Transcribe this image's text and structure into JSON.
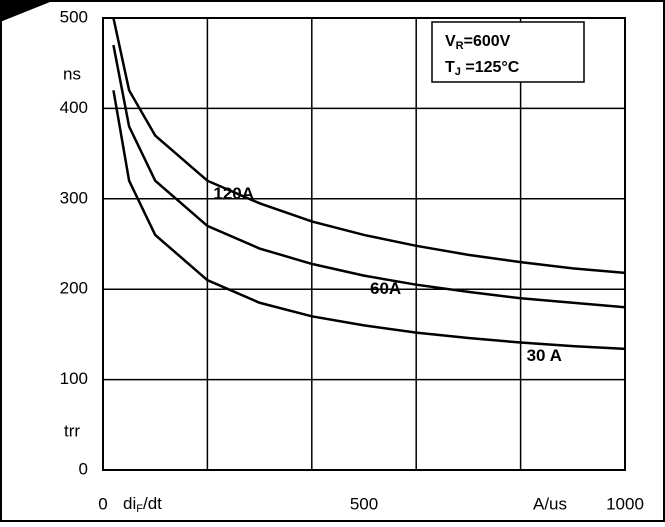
{
  "chart_data": {
    "type": "line",
    "y_label_top": "ns",
    "y_label_bottom": "trr",
    "x_label": [
      "di",
      "F",
      "/dt"
    ],
    "x_unit": "A/us",
    "annotations": [
      [
        "V",
        "R",
        "=600V"
      ],
      [
        "T",
        "J",
        " =125°C"
      ]
    ],
    "x": [
      20,
      50,
      100,
      200,
      300,
      400,
      500,
      600,
      700,
      800,
      900,
      1000
    ],
    "series": [
      {
        "name": "120A",
        "color": "#000000",
        "values": [
          500,
          420,
          370,
          320,
          295,
          275,
          260,
          248,
          238,
          230,
          223,
          218
        ]
      },
      {
        "name": "60A",
        "color": "#000000",
        "values": [
          470,
          380,
          320,
          270,
          245,
          228,
          215,
          205,
          197,
          190,
          185,
          180
        ]
      },
      {
        "name": "30 A",
        "color": "#000000",
        "values": [
          420,
          320,
          260,
          210,
          185,
          170,
          160,
          152,
          146,
          141,
          137,
          134
        ]
      }
    ],
    "xlim": [
      0,
      1000
    ],
    "ylim": [
      0,
      500
    ],
    "xticks": [
      0,
      500,
      1000
    ],
    "yticks": [
      0,
      100,
      200,
      300,
      400,
      500
    ],
    "xgrid": [
      0,
      200,
      400,
      600,
      800,
      1000
    ],
    "grid": true
  }
}
